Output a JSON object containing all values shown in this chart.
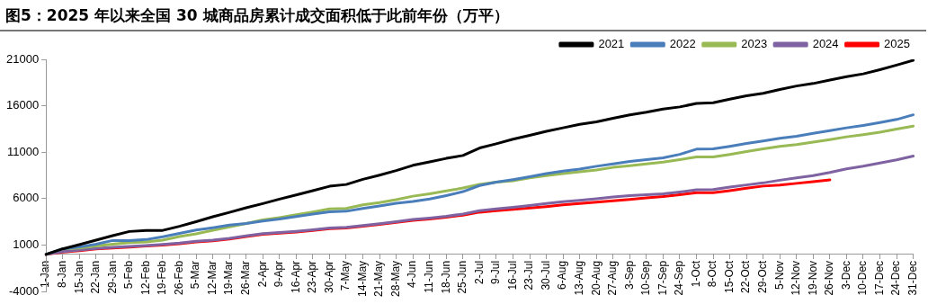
{
  "chart_data": {
    "type": "line",
    "title": "图5：2025 年以来全国 30 城商品房累计成交面积低于此前年份（万平）",
    "categories": [
      "1-Jan",
      "8-Jan",
      "15-Jan",
      "22-Jan",
      "29-Jan",
      "5-Feb",
      "12-Feb",
      "19-Feb",
      "26-Feb",
      "5-Mar",
      "12-Mar",
      "19-Mar",
      "26-Mar",
      "2-Apr",
      "9-Apr",
      "16-Apr",
      "23-Apr",
      "30-Apr",
      "7-May",
      "14-May",
      "21-May",
      "28-May",
      "4-Jun",
      "11-Jun",
      "18-Jun",
      "25-Jun",
      "2-Jul",
      "9-Jul",
      "16-Jul",
      "23-Jul",
      "30-Jul",
      "6-Aug",
      "13-Aug",
      "20-Aug",
      "27-Aug",
      "3-Sep",
      "10-Sep",
      "17-Sep",
      "24-Sep",
      "1-Oct",
      "8-Oct",
      "15-Oct",
      "22-Oct",
      "29-Oct",
      "5-Nov",
      "12-Nov",
      "19-Nov",
      "26-Nov",
      "3-Dec",
      "10-Dec",
      "17-Dec",
      "24-Dec",
      "31-Dec"
    ],
    "series": [
      {
        "name": "2021",
        "color": "#000000",
        "values": [
          0,
          600,
          1050,
          1540,
          2020,
          2470,
          2590,
          2590,
          3030,
          3520,
          4050,
          4530,
          5020,
          5470,
          5960,
          6400,
          6860,
          7340,
          7530,
          8090,
          8540,
          9030,
          9590,
          9960,
          10340,
          10650,
          11460,
          11910,
          12400,
          12810,
          13260,
          13630,
          14010,
          14270,
          14650,
          15030,
          15320,
          15660,
          15880,
          16260,
          16330,
          16710,
          17080,
          17340,
          17760,
          18130,
          18400,
          18770,
          19140,
          19440,
          19890,
          20380,
          20900
        ]
      },
      {
        "name": "2022",
        "color": "#4a7ebb",
        "values": [
          0,
          600,
          800,
          1100,
          1500,
          1500,
          1600,
          1900,
          2260,
          2620,
          2880,
          3150,
          3330,
          3600,
          3820,
          4090,
          4350,
          4580,
          4650,
          4950,
          5220,
          5510,
          5700,
          5960,
          6340,
          6760,
          7420,
          7780,
          8060,
          8360,
          8700,
          8960,
          9190,
          9490,
          9750,
          10010,
          10200,
          10400,
          10770,
          11330,
          11360,
          11640,
          11940,
          12210,
          12510,
          12730,
          13030,
          13330,
          13630,
          13890,
          14190,
          14530,
          15030
        ]
      },
      {
        "name": "2023",
        "color": "#98b954",
        "values": [
          0,
          600,
          700,
          900,
          1100,
          1280,
          1350,
          1530,
          1920,
          2210,
          2590,
          2960,
          3330,
          3710,
          3970,
          4270,
          4570,
          4910,
          4950,
          5330,
          5590,
          5900,
          6270,
          6530,
          6830,
          7150,
          7550,
          7780,
          7930,
          8240,
          8490,
          8700,
          8890,
          9100,
          9370,
          9560,
          9750,
          9940,
          10200,
          10500,
          10500,
          10770,
          11070,
          11370,
          11640,
          11830,
          12100,
          12360,
          12660,
          12890,
          13150,
          13490,
          13820
        ]
      },
      {
        "name": "2024",
        "color": "#7e62a1",
        "values": [
          0,
          300,
          480,
          650,
          760,
          850,
          960,
          1080,
          1220,
          1420,
          1540,
          1730,
          2000,
          2230,
          2350,
          2490,
          2650,
          2850,
          2920,
          3120,
          3310,
          3520,
          3760,
          3920,
          4100,
          4350,
          4700,
          4900,
          5070,
          5260,
          5480,
          5670,
          5820,
          6000,
          6190,
          6340,
          6420,
          6530,
          6720,
          6950,
          6980,
          7250,
          7480,
          7700,
          7990,
          8250,
          8480,
          8820,
          9210,
          9500,
          9840,
          10180,
          10590
        ]
      },
      {
        "name": "2025",
        "color": "#ff0000",
        "values": [
          0,
          250,
          400,
          600,
          700,
          780,
          900,
          1000,
          1150,
          1350,
          1460,
          1650,
          1920,
          2160,
          2280,
          2420,
          2580,
          2770,
          2840,
          3030,
          3220,
          3440,
          3670,
          3820,
          4000,
          4230,
          4550,
          4700,
          4850,
          5000,
          5150,
          5330,
          5480,
          5630,
          5780,
          5930,
          6080,
          6230,
          6420,
          6650,
          6650,
          6870,
          7130,
          7360,
          7470,
          7650,
          7840,
          8030,
          null,
          null,
          null,
          null,
          null
        ]
      }
    ],
    "ylim": [
      -4000,
      21000
    ],
    "yticks": [
      -4000,
      1000,
      6000,
      11000,
      16000,
      21000
    ],
    "grid": false,
    "legend": "top right",
    "marker": "none",
    "line_style": "solid"
  }
}
